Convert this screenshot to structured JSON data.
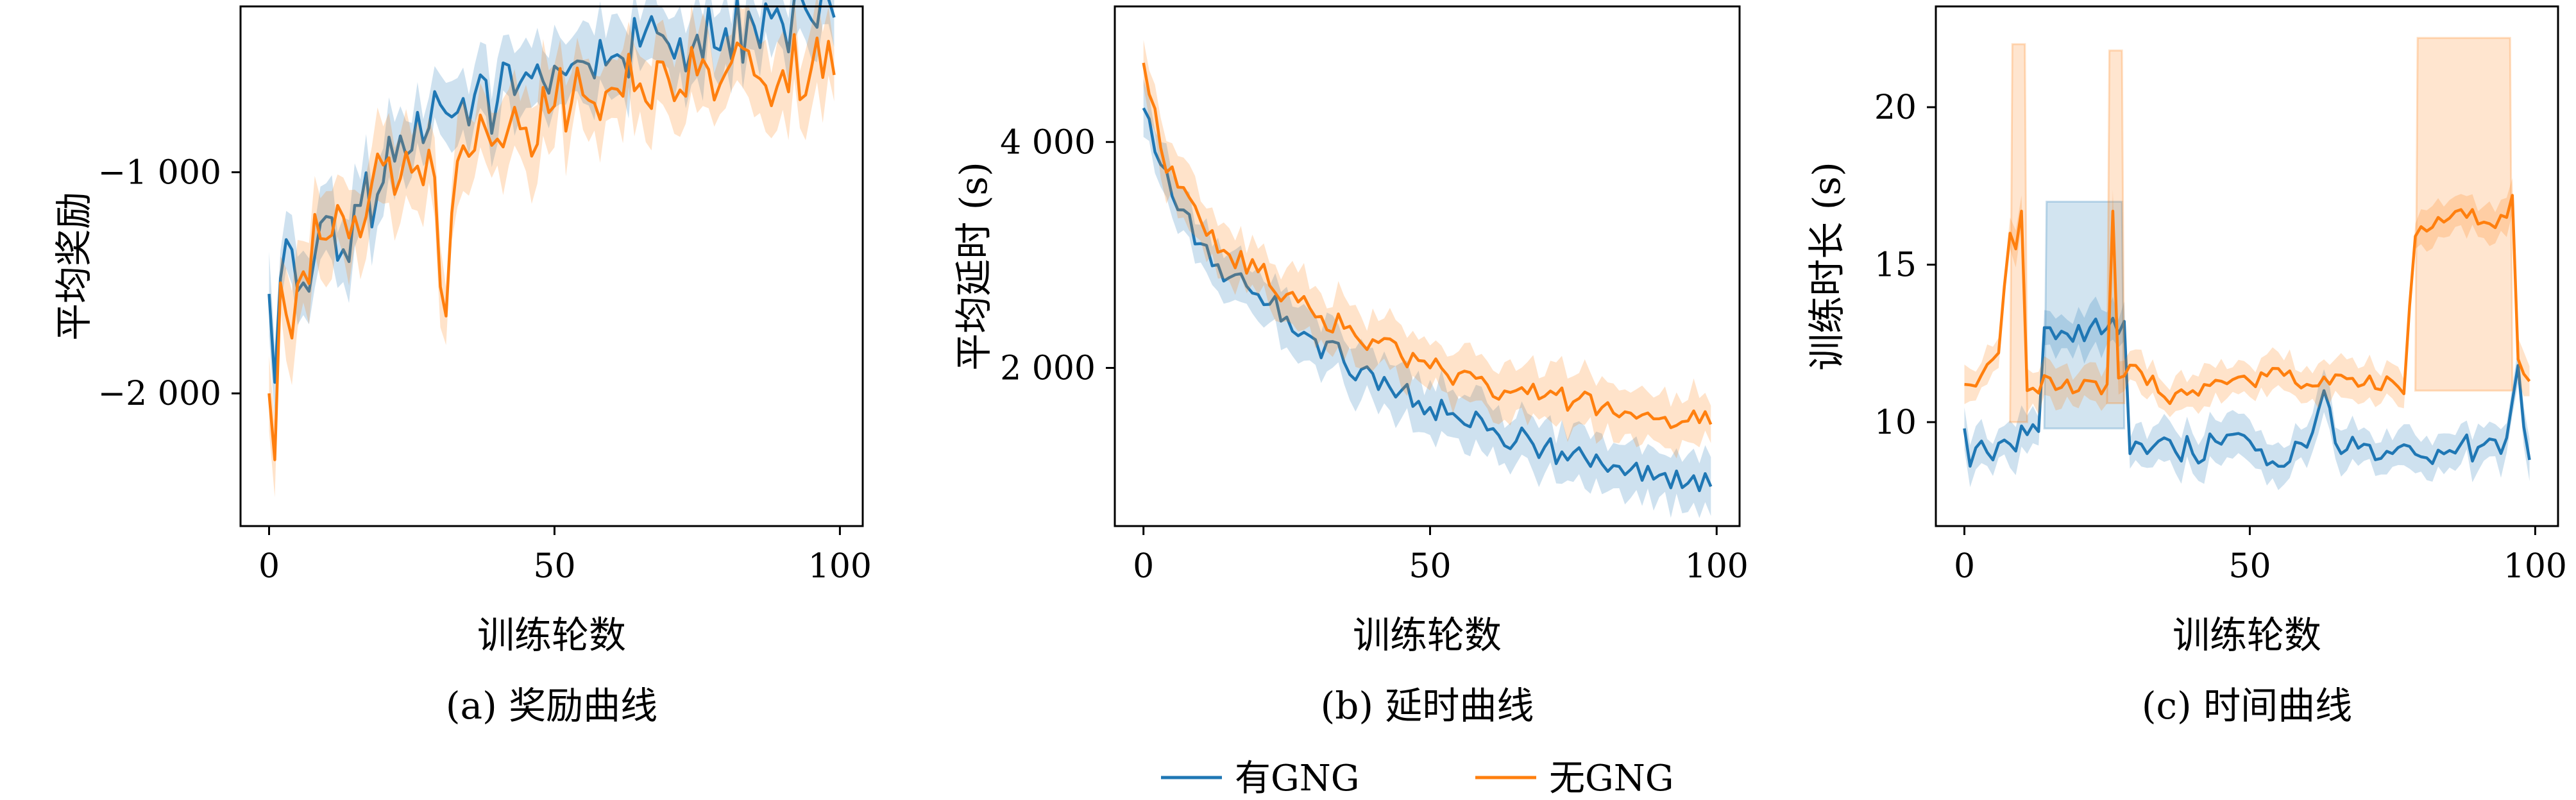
{
  "legend": [
    {
      "label": "有GNG",
      "color": "#1f77b4"
    },
    {
      "label": "无GNG",
      "color": "#ff7f0e"
    }
  ],
  "chart_data": [
    {
      "type": "line",
      "caption": "(a) 奖励曲线",
      "xlabel": "训练轮数",
      "ylabel": "平均奖励",
      "xlim": [
        -5,
        104
      ],
      "ylim": [
        -2600,
        -250
      ],
      "xticks": [
        0,
        50,
        100
      ],
      "xtick_labels": [
        "0",
        "50",
        "100"
      ],
      "yticks": [
        -1000,
        -2000
      ],
      "ytick_labels": [
        "−1 000",
        "−2 000"
      ],
      "series": [
        {
          "name": "有GNG",
          "color": "#1f77b4",
          "band": 150,
          "anchors": [
            [
              0,
              -1550
            ],
            [
              1,
              -1950
            ],
            [
              2,
              -1480
            ],
            [
              4,
              -1350
            ],
            [
              6,
              -1500
            ],
            [
              8,
              -1380
            ],
            [
              10,
              -1200
            ],
            [
              13,
              -1350
            ],
            [
              16,
              -1150
            ],
            [
              19,
              -1100
            ],
            [
              22,
              -950
            ],
            [
              25,
              -900
            ],
            [
              28,
              -800
            ],
            [
              32,
              -750
            ],
            [
              36,
              -650
            ],
            [
              40,
              -680
            ],
            [
              45,
              -550
            ],
            [
              50,
              -520
            ],
            [
              55,
              -500
            ],
            [
              60,
              -480
            ],
            [
              65,
              -430
            ],
            [
              70,
              -420
            ],
            [
              75,
              -380
            ],
            [
              80,
              -350
            ],
            [
              85,
              -340
            ],
            [
              90,
              -330
            ],
            [
              95,
              -310
            ],
            [
              99,
              -300
            ]
          ],
          "noise": 160
        },
        {
          "name": "无GNG",
          "color": "#ff7f0e",
          "band": 170,
          "anchors": [
            [
              0,
              -2000
            ],
            [
              1,
              -2300
            ],
            [
              2,
              -1500
            ],
            [
              4,
              -1750
            ],
            [
              6,
              -1450
            ],
            [
              9,
              -1300
            ],
            [
              12,
              -1150
            ],
            [
              15,
              -1200
            ],
            [
              18,
              -1050
            ],
            [
              22,
              -1100
            ],
            [
              25,
              -1000
            ],
            [
              28,
              -900
            ],
            [
              31,
              -1650
            ],
            [
              33,
              -950
            ],
            [
              36,
              -900
            ],
            [
              40,
              -850
            ],
            [
              45,
              -800
            ],
            [
              50,
              -700
            ],
            [
              55,
              -650
            ],
            [
              60,
              -620
            ],
            [
              65,
              -600
            ],
            [
              70,
              -580
            ],
            [
              75,
              -560
            ],
            [
              80,
              -550
            ],
            [
              85,
              -560
            ],
            [
              90,
              -540
            ],
            [
              95,
              -530
            ],
            [
              99,
              -560
            ]
          ],
          "noise": 160
        }
      ]
    },
    {
      "type": "line",
      "caption": "(b) 延时曲线",
      "xlabel": "训练轮数",
      "ylabel": "平均延时 (s)",
      "xlim": [
        -5,
        104
      ],
      "ylim": [
        600,
        5200
      ],
      "xticks": [
        0,
        50,
        100
      ],
      "xtick_labels": [
        "0",
        "50",
        "100"
      ],
      "yticks": [
        4000,
        2000
      ],
      "ytick_labels": [
        "4 000",
        "2 000"
      ],
      "series": [
        {
          "name": "有GNG",
          "color": "#1f77b4",
          "band": 220,
          "anchors": [
            [
              0,
              4300
            ],
            [
              3,
              3800
            ],
            [
              6,
              3400
            ],
            [
              10,
              3100
            ],
            [
              15,
              2800
            ],
            [
              20,
              2650
            ],
            [
              25,
              2450
            ],
            [
              30,
              2250
            ],
            [
              35,
              2050
            ],
            [
              40,
              1950
            ],
            [
              45,
              1800
            ],
            [
              50,
              1650
            ],
            [
              55,
              1550
            ],
            [
              60,
              1450
            ],
            [
              65,
              1350
            ],
            [
              70,
              1300
            ],
            [
              75,
              1250
            ],
            [
              80,
              1150
            ],
            [
              85,
              1100
            ],
            [
              90,
              1050
            ],
            [
              95,
              980
            ],
            [
              99,
              950
            ]
          ],
          "noise": 130
        },
        {
          "name": "无GNG",
          "color": "#ff7f0e",
          "band": 230,
          "anchors": [
            [
              0,
              4700
            ],
            [
              3,
              3950
            ],
            [
              6,
              3600
            ],
            [
              10,
              3300
            ],
            [
              15,
              3000
            ],
            [
              20,
              2850
            ],
            [
              25,
              2650
            ],
            [
              30,
              2450
            ],
            [
              35,
              2350
            ],
            [
              40,
              2250
            ],
            [
              45,
              2100
            ],
            [
              50,
              2000
            ],
            [
              55,
              1950
            ],
            [
              60,
              1850
            ],
            [
              65,
              1800
            ],
            [
              70,
              1750
            ],
            [
              75,
              1700
            ],
            [
              80,
              1650
            ],
            [
              85,
              1600
            ],
            [
              90,
              1550
            ],
            [
              95,
              1530
            ],
            [
              99,
              1500
            ]
          ],
          "noise": 110
        }
      ]
    },
    {
      "type": "line",
      "caption": "(c) 时间曲线",
      "xlabel": "训练轮数",
      "ylabel": "训练时长 (s)",
      "xlim": [
        -5,
        104
      ],
      "ylim": [
        6.7,
        23.2
      ],
      "xticks": [
        0,
        50,
        100
      ],
      "xtick_labels": [
        "0",
        "50",
        "100"
      ],
      "yticks": [
        20,
        15,
        10
      ],
      "ytick_labels": [
        "20",
        "15",
        "10"
      ],
      "series": [
        {
          "name": "有GNG",
          "color": "#1f77b4",
          "band": 0.6,
          "anchors": [
            [
              0,
              9.8
            ],
            [
              1,
              8.6
            ],
            [
              3,
              9.4
            ],
            [
              5,
              8.8
            ],
            [
              8,
              9.3
            ],
            [
              11,
              9.6
            ],
            [
              13,
              9.7
            ],
            [
              14,
              13.0
            ],
            [
              18,
              12.8
            ],
            [
              22,
              13.0
            ],
            [
              26,
              13.3
            ],
            [
              28,
              13.2
            ],
            [
              29,
              9.0
            ],
            [
              31,
              9.3
            ],
            [
              35,
              9.5
            ],
            [
              40,
              9.0
            ],
            [
              45,
              9.3
            ],
            [
              50,
              9.4
            ],
            [
              55,
              8.6
            ],
            [
              60,
              9.2
            ],
            [
              63,
              11.0
            ],
            [
              66,
              9.0
            ],
            [
              70,
              9.3
            ],
            [
              75,
              9.0
            ],
            [
              80,
              8.9
            ],
            [
              85,
              9.1
            ],
            [
              90,
              9.2
            ],
            [
              95,
              9.5
            ],
            [
              97,
              11.8
            ],
            [
              99,
              8.8
            ]
          ],
          "noise": 0.45,
          "extra_band": {
            "from": 14,
            "to": 28,
            "low": 9.8,
            "high": 17.0
          }
        },
        {
          "name": "无GNG",
          "color": "#ff7f0e",
          "band": 0.55,
          "anchors": [
            [
              0,
              11.2
            ],
            [
              3,
              11.5
            ],
            [
              6,
              12.2
            ],
            [
              8,
              16.0
            ],
            [
              9,
              15.5
            ],
            [
              10,
              16.7
            ],
            [
              11,
              11.0
            ],
            [
              15,
              11.4
            ],
            [
              20,
              11.0
            ],
            [
              25,
              11.2
            ],
            [
              26,
              16.7
            ],
            [
              27,
              11.4
            ],
            [
              30,
              11.8
            ],
            [
              35,
              10.8
            ],
            [
              40,
              11.0
            ],
            [
              45,
              11.3
            ],
            [
              50,
              11.3
            ],
            [
              55,
              11.7
            ],
            [
              60,
              11.2
            ],
            [
              65,
              11.5
            ],
            [
              70,
              11.2
            ],
            [
              75,
              11.3
            ],
            [
              77,
              10.9
            ],
            [
              79,
              15.9
            ],
            [
              83,
              16.5
            ],
            [
              88,
              16.5
            ],
            [
              92,
              16.3
            ],
            [
              95,
              16.5
            ],
            [
              96,
              17.2
            ],
            [
              97,
              12.0
            ],
            [
              99,
              11.3
            ]
          ],
          "noise": 0.3,
          "extra_band": [
            {
              "from": 8,
              "to": 11,
              "low": 10.0,
              "high": 22.0
            },
            {
              "from": 25,
              "to": 28,
              "low": 10.6,
              "high": 21.8
            },
            {
              "from": 79,
              "to": 96,
              "low": 11.0,
              "high": 22.2
            }
          ]
        }
      ]
    }
  ]
}
